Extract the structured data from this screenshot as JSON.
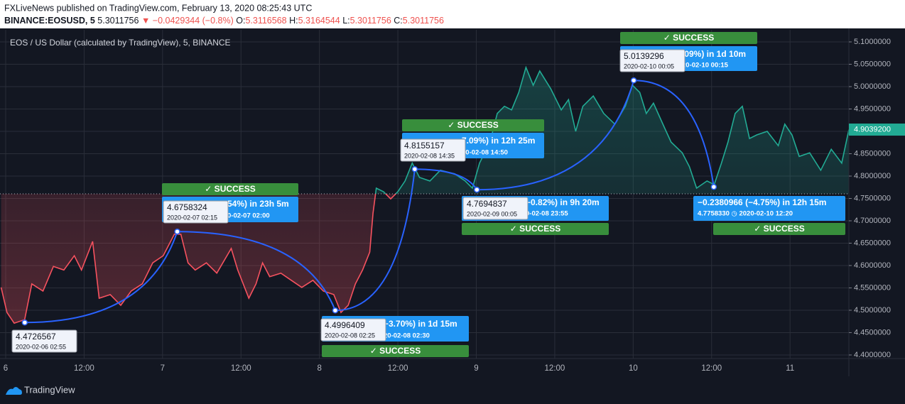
{
  "header": {
    "publisher": "FXLiveNews published on TradingView.com, February 13, 2020 08:25:43 UTC",
    "symbol": "BINANCE:EOSUSD, 5",
    "last": "5.3011756",
    "change": "▼ −0.0429344 (−0.8%)",
    "ohlc": [
      [
        "O:",
        "5.3116568"
      ],
      [
        "H:",
        "5.3164544"
      ],
      [
        "L:",
        "5.3011756"
      ],
      [
        "C:",
        "5.3011756"
      ]
    ]
  },
  "chart_data": {
    "type": "line",
    "title": "EOS / US Dollar (calculated by TradingView), 5, BINANCE",
    "x": [
      -0.7,
      0.2,
      1.3,
      2.9,
      4.0,
      5.7,
      7.3,
      8.9,
      10.5,
      11.6,
      13.3,
      14.3,
      16.0,
      17.6,
      19.2,
      20.9,
      22.5,
      24.1,
      25.8,
      26.8,
      27.9,
      29.0,
      30.7,
      32.3,
      34.5,
      35.5,
      37.2,
      38.3,
      39.3,
      40.4,
      42.1,
      43.7,
      45.3,
      47.0,
      48.6,
      50.2,
      51.3,
      52.4,
      53.5,
      54.6,
      55.7,
      56.2,
      56.7,
      57.8,
      58.9,
      60.0,
      61.1,
      62.2,
      63.3,
      64.9,
      66.5,
      68.7,
      70.3,
      71.4,
      72.5,
      74.1,
      75.2,
      76.3,
      77.4,
      78.5,
      79.6,
      80.7,
      81.7,
      83.4,
      85.0,
      86.1,
      87.2,
      88.3,
      89.9,
      91.5,
      93.2,
      94.8,
      95.9,
      97.0,
      98.0,
      99.1,
      100.8,
      101.8,
      103.5,
      104.6,
      105.7,
      107.3,
      108.4,
      109.5,
      110.5,
      111.6,
      112.7,
      113.8,
      114.9,
      116.5,
      118.2,
      119.2,
      120.3,
      121.4,
      123.0,
      124.7,
      126.3,
      127.9,
      129.0
    ],
    "values": [
      4.551,
      4.495,
      4.471,
      4.479,
      4.559,
      4.543,
      4.598,
      4.59,
      4.622,
      4.59,
      4.654,
      4.527,
      4.535,
      4.511,
      4.543,
      4.559,
      4.606,
      4.622,
      4.67,
      4.67,
      4.606,
      4.59,
      4.606,
      4.583,
      4.638,
      4.59,
      4.527,
      4.559,
      4.606,
      4.575,
      4.583,
      4.567,
      4.551,
      4.567,
      4.543,
      4.535,
      4.495,
      4.511,
      4.559,
      4.59,
      4.63,
      4.717,
      4.773,
      4.765,
      4.749,
      4.765,
      4.789,
      4.829,
      4.797,
      4.789,
      4.813,
      4.805,
      4.789,
      4.773,
      4.829,
      4.876,
      4.94,
      4.956,
      4.948,
      4.987,
      5.043,
      5.003,
      5.035,
      4.995,
      4.948,
      4.971,
      4.9,
      4.956,
      4.979,
      4.94,
      4.916,
      4.956,
      5.003,
      4.987,
      4.94,
      4.963,
      4.908,
      4.876,
      4.852,
      4.821,
      4.773,
      4.789,
      4.781,
      4.829,
      4.876,
      4.94,
      4.956,
      4.884,
      4.892,
      4.9,
      4.868,
      4.916,
      4.892,
      4.844,
      4.852,
      4.813,
      4.86,
      4.829,
      4.90392
    ],
    "up_color": "#22ab94",
    "down_color": "#f7525f",
    "baseline": 4.7603,
    "last_label": "4.9039200",
    "xlim": [
      -0.87,
      129.0
    ],
    "xticks": [
      {
        "value": 0,
        "label": "6"
      },
      {
        "value": 12,
        "label": "12:00"
      },
      {
        "value": 24,
        "label": "7"
      },
      {
        "value": 36,
        "label": "12:00"
      },
      {
        "value": 48,
        "label": "8"
      },
      {
        "value": 60,
        "label": "12:00"
      },
      {
        "value": 72,
        "label": "9"
      },
      {
        "value": 84,
        "label": "12:00"
      },
      {
        "value": 96,
        "label": "10"
      },
      {
        "value": 108,
        "label": "12:00"
      },
      {
        "value": 120,
        "label": "11"
      }
    ],
    "ylim": [
      4.392,
      5.127
    ],
    "yticks": [
      {
        "value": 4.4,
        "label": "4.4000000"
      },
      {
        "value": 4.45,
        "label": "4.4500000"
      },
      {
        "value": 4.5,
        "label": "4.5000000"
      },
      {
        "value": 4.55,
        "label": "4.5500000"
      },
      {
        "value": 4.6,
        "label": "4.6000000"
      },
      {
        "value": 4.65,
        "label": "4.6500000"
      },
      {
        "value": 4.7,
        "label": "4.7000000"
      },
      {
        "value": 4.75,
        "label": "4.7500000"
      },
      {
        "value": 4.8,
        "label": "4.8000000"
      },
      {
        "value": 4.85,
        "label": "4.8500000"
      },
      {
        "value": 4.9,
        "label": "4.9000000"
      },
      {
        "value": 4.95,
        "label": "4.9500000"
      },
      {
        "value": 5.0,
        "label": "5.0000000"
      },
      {
        "value": 5.05,
        "label": "5.0500000"
      },
      {
        "value": 5.1,
        "label": "5.1000000"
      }
    ],
    "grid": true,
    "points": [
      {
        "x": 2.917,
        "price": 4.4726567,
        "date": "2020-02-06 02:55"
      },
      {
        "x": 26.25,
        "price": 4.6758324,
        "date": "2020-02-07 02:15"
      },
      {
        "x": 50.417,
        "price": 4.4996409,
        "date": "2020-02-08 02:25"
      },
      {
        "x": 62.583,
        "price": 4.8155157,
        "date": "2020-02-08 14:35"
      },
      {
        "x": 72.083,
        "price": 4.7694837,
        "date": "2020-02-09 00:05"
      },
      {
        "x": 96.083,
        "price": 5.0139296,
        "date": "2020-02-10 00:05"
      },
      {
        "x": 108.333,
        "price": 4.775833
      }
    ],
    "forecasts": [
      {
        "change": "54%) in 23h 5m",
        "target": "0-02-07  02:00",
        "status": "✓ SUCCESS"
      },
      {
        "change": "−3.70%) in 1d 15m",
        "target": "20-02-08  02:30",
        "status": "✓ SUCCESS"
      },
      {
        "change": "7.09%) in 12h 25m",
        "target": "20-02-08  14:50",
        "status": "✓ SUCCESS"
      },
      {
        "change": "−0.82%) in 9h 20m",
        "target": "0-02-08  23:55",
        "status": "✓ SUCCESS"
      },
      {
        "change": ".09%) in 1d 10m",
        "target": "20-02-10  00:15",
        "status": "✓ SUCCESS"
      },
      {
        "change": "−0.2380966 (−4.75%) in 12h 15m",
        "target": "4.7758330 ◷ 2020-02-10  12:20",
        "status": "✓ SUCCESS"
      }
    ]
  },
  "footer": {
    "brand": "TradingView"
  }
}
